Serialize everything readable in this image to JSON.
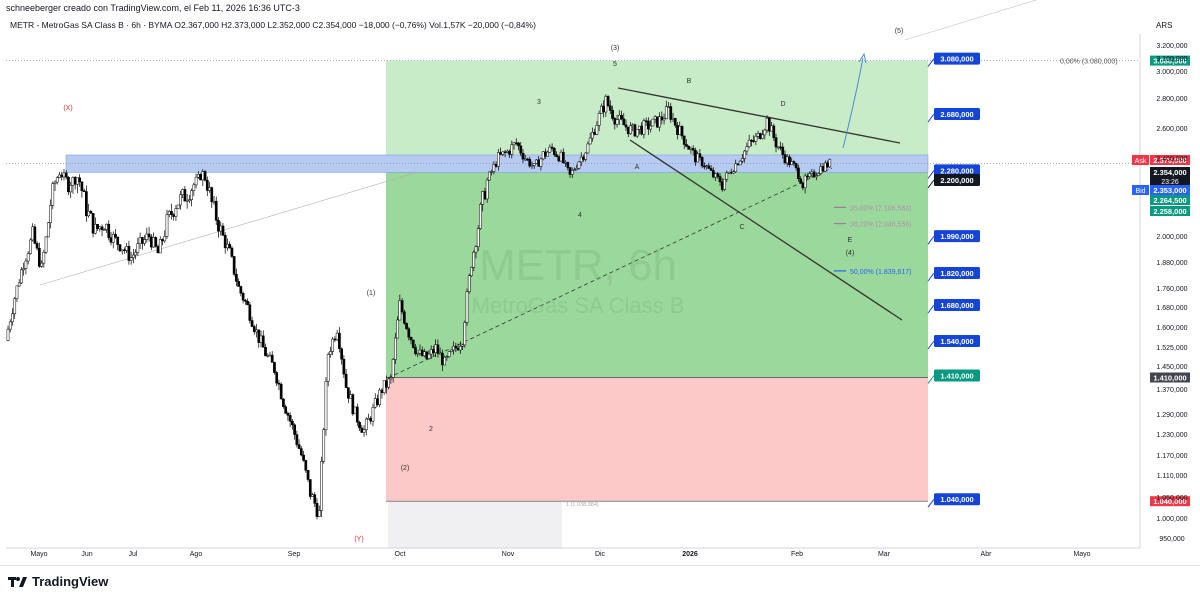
{
  "header": {
    "attribution": "schneeberger creado con TradingView.com, el Feb 11, 2026 16:36 UTC-3"
  },
  "chart_data": {
    "type": "candlestick",
    "symbol_line": "METR - MetroGas SA Class B · 6h · BYMA  O2.367,000  H2.373,000  L2.352,000  C2.354,000  −18,000 (−0,76%)  Vol.1,57K  −20,000 (−0,84%)",
    "watermark_symbol": "METR, 6h",
    "watermark_name": "MetroGas SA Class B",
    "currency": "ARS",
    "y_ticks": [
      "3.200,000",
      "3.100,000",
      "3.000,000",
      "2.800,000",
      "2.600,000",
      "2.400,000",
      "2.000,000",
      "1.880,000",
      "1.760,000",
      "1.680,000",
      "1.600,000",
      "1.525,000",
      "1.450,000",
      "1.370,000",
      "1.290,000",
      "1.230,000",
      "1.170,000",
      "1.110,000",
      "1.050,000",
      "1.000,000",
      "950,000"
    ],
    "x_ticks": [
      "Mayo",
      "Jun",
      "Jul",
      "Ago",
      "Sep",
      "Oct",
      "Nov",
      "Dic",
      "2026",
      "Feb",
      "Mar",
      "Abr",
      "Mayo"
    ],
    "ylim": [
      950,
      3250
    ],
    "price_series": [
      {
        "d": "Abr 28",
        "p": 1550
      },
      {
        "d": "May 3",
        "p": 1720
      },
      {
        "d": "May 8",
        "p": 1880
      },
      {
        "d": "May 13",
        "p": 2000
      },
      {
        "d": "May 18",
        "p": 1850
      },
      {
        "d": "May 23",
        "p": 2120
      },
      {
        "d": "May 28",
        "p": 2280
      },
      {
        "d": "Jun 1",
        "p": 2200
      },
      {
        "d": "Jun 6",
        "p": 2240
      },
      {
        "d": "Jun 11",
        "p": 2100
      },
      {
        "d": "Jun 16",
        "p": 2020
      },
      {
        "d": "Jun 21",
        "p": 2050
      },
      {
        "d": "Jun 26",
        "p": 1990
      },
      {
        "d": "Jul 1",
        "p": 1950
      },
      {
        "d": "Jul 6",
        "p": 1900
      },
      {
        "d": "Jul 11",
        "p": 1960
      },
      {
        "d": "Jul 16",
        "p": 2000
      },
      {
        "d": "Jul 21",
        "p": 1920
      },
      {
        "d": "Jul 26",
        "p": 2050
      },
      {
        "d": "Jul 31",
        "p": 2120
      },
      {
        "d": "Ago 5",
        "p": 2150
      },
      {
        "d": "Ago 10",
        "p": 2190
      },
      {
        "d": "Ago 15",
        "p": 2270
      },
      {
        "d": "Ago 20",
        "p": 2120
      },
      {
        "d": "Ago 25",
        "p": 2020
      },
      {
        "d": "Ago 30",
        "p": 1920
      },
      {
        "d": "Sep 4",
        "p": 1760
      },
      {
        "d": "Sep 9",
        "p": 1680
      },
      {
        "d": "Sep 14",
        "p": 1580
      },
      {
        "d": "Sep 19",
        "p": 1500
      },
      {
        "d": "Sep 24",
        "p": 1440
      },
      {
        "d": "Sep 29",
        "p": 1330
      },
      {
        "d": "Oct 4",
        "p": 1250
      },
      {
        "d": "Oct 9",
        "p": 1170
      },
      {
        "d": "Oct 14",
        "p": 1060
      },
      {
        "d": "Oct 17",
        "p": 1010
      },
      {
        "d": "Oct 20",
        "p": 1500
      },
      {
        "d": "Oct 23",
        "p": 1600
      },
      {
        "d": "Oct 25",
        "p": 1380
      },
      {
        "d": "Oct 28",
        "p": 1290
      },
      {
        "d": "Oct 31",
        "p": 1240
      },
      {
        "d": "Nov 3",
        "p": 1300
      },
      {
        "d": "Nov 6",
        "p": 1370
      },
      {
        "d": "Nov 9",
        "p": 1400
      },
      {
        "d": "Nov 12",
        "p": 1690
      },
      {
        "d": "Nov 15",
        "p": 1580
      },
      {
        "d": "Nov 18",
        "p": 1500
      },
      {
        "d": "Nov 21",
        "p": 1480
      },
      {
        "d": "Nov 24",
        "p": 1520
      },
      {
        "d": "Nov 27",
        "p": 1460
      },
      {
        "d": "Nov 30",
        "p": 1510
      },
      {
        "d": "Dic 2",
        "p": 1560
      },
      {
        "d": "Dic 4",
        "p": 1880
      },
      {
        "d": "Dic 7",
        "p": 2090
      },
      {
        "d": "Dic 10",
        "p": 2250
      },
      {
        "d": "Dic 13",
        "p": 2400
      },
      {
        "d": "Dic 16",
        "p": 2440
      },
      {
        "d": "Dic 19",
        "p": 2500
      },
      {
        "d": "Dic 22",
        "p": 2400
      },
      {
        "d": "Dic 25",
        "p": 2320
      },
      {
        "d": "Dic 28",
        "p": 2420
      },
      {
        "d": "Dic 31",
        "p": 2460
      },
      {
        "d": "Ene 3",
        "p": 2400
      },
      {
        "d": "Ene 6",
        "p": 2250
      },
      {
        "d": "Ene 9",
        "p": 2380
      },
      {
        "d": "Ene 12",
        "p": 2480
      },
      {
        "d": "Ene 15",
        "p": 2640
      },
      {
        "d": "Ene 18",
        "p": 2780
      },
      {
        "d": "Ene 21",
        "p": 2670
      },
      {
        "d": "Ene 24",
        "p": 2620
      },
      {
        "d": "Ene 27",
        "p": 2580
      },
      {
        "d": "Ene 30",
        "p": 2600
      },
      {
        "d": "Feb 2",
        "p": 2620
      },
      {
        "d": "Feb 5",
        "p": 2650
      },
      {
        "d": "Feb 8",
        "p": 2720
      },
      {
        "d": "Feb 11",
        "p": 2600
      },
      {
        "d": "Feb 14",
        "p": 2500
      },
      {
        "d": "Feb 17",
        "p": 2400
      },
      {
        "d": "Feb 20",
        "p": 2350
      },
      {
        "d": "Feb 23",
        "p": 2250
      },
      {
        "d": "Feb 26",
        "p": 2200
      },
      {
        "d": "Mar 1",
        "p": 2300
      },
      {
        "d": "Mar 4",
        "p": 2400
      },
      {
        "d": "Mar 7",
        "p": 2490
      },
      {
        "d": "Mar 10",
        "p": 2540
      },
      {
        "d": "Mar 13",
        "p": 2650
      },
      {
        "d": "Mar 16",
        "p": 2500
      },
      {
        "d": "Mar 19",
        "p": 2400
      },
      {
        "d": "Mar 22",
        "p": 2330
      },
      {
        "d": "Mar 25",
        "p": 2200
      },
      {
        "d": "Mar 28",
        "p": 2250
      },
      {
        "d": "Mar 31",
        "p": 2320
      },
      {
        "d": "Abr 3",
        "p": 2354
      }
    ],
    "zones": {
      "profit_top": 3080,
      "entry": 1410,
      "stop": 1040,
      "resistance_band": [
        2280,
        2420
      ]
    },
    "level_tags": [
      "3.080,000",
      "2.680,000",
      "2.280,000",
      "2.200,000",
      "1.990,000",
      "1.820,000",
      "1.680,000",
      "1.540,000",
      "1.410,000",
      "1.040,000"
    ],
    "fib_labels": [
      {
        "text": "0,00% (3.080,000)",
        "price": 3080
      },
      {
        "text": "35,00% (2.106,583)",
        "price": 2106
      },
      {
        "text": "38,20% (2.046,556)",
        "price": 2046
      },
      {
        "text": "50,00% (1.839,617)",
        "price": 1839
      }
    ],
    "right_tags": [
      {
        "text": "3.080,000",
        "price": 3080,
        "color": "#089981"
      },
      {
        "text": "2.370,000",
        "price": 2370,
        "color": "#f23645",
        "prefix": "Ask"
      },
      {
        "text": "2.354,000",
        "price": 2354,
        "color": "#131722",
        "sub": "23:26"
      },
      {
        "text": "2.353,000",
        "price": 2353,
        "color": "#2962ff",
        "prefix": "Bid"
      },
      {
        "text": "2.264,500",
        "price": 2264,
        "color": "#089981"
      },
      {
        "text": "2.258,000",
        "price": 2258,
        "color": "#089981"
      },
      {
        "text": "1.410,000",
        "price": 1410,
        "color": "#434651"
      },
      {
        "text": "1.040,000",
        "price": 1040,
        "color": "#f23645"
      }
    ],
    "small_label": "1 (1.038,384)",
    "wave_labels": [
      "(X)",
      "(Y)",
      "(1)",
      "(2)",
      "(3)",
      "(4)",
      "(5)",
      "1",
      "2",
      "3",
      "4",
      "5",
      "A",
      "B",
      "C",
      "D",
      "E"
    ]
  }
}
